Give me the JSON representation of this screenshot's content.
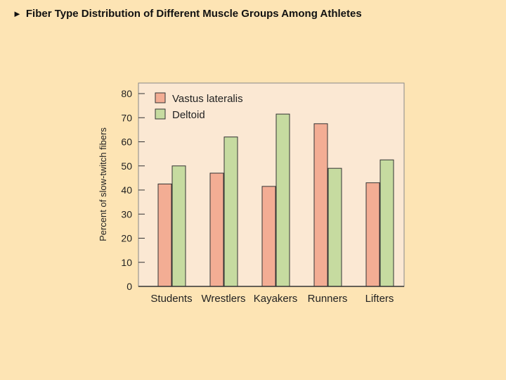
{
  "slide": {
    "bullet_icon": "play-triangle-icon",
    "title": "Fiber Type Distribution of Different Muscle Groups Among Athletes"
  },
  "colors": {
    "background": "#fde4b4",
    "plot_bg": "#fbe8d3",
    "series_1": "#f3ad94",
    "series_2": "#c6dba0",
    "axis": "#333333"
  },
  "chart_data": {
    "type": "bar",
    "title": "",
    "xlabel": "",
    "ylabel": "Percent of slow-twitch fibers",
    "ylim": [
      0,
      80
    ],
    "yticks": [
      0,
      10,
      20,
      30,
      40,
      50,
      60,
      70,
      80
    ],
    "grid": false,
    "legend_position": "top-left",
    "categories": [
      "Students",
      "Wrestlers",
      "Kayakers",
      "Runners",
      "Lifters"
    ],
    "series": [
      {
        "name": "Vastus lateralis",
        "values": [
          42.5,
          47,
          41.5,
          67.5,
          43
        ]
      },
      {
        "name": "Deltoid",
        "values": [
          50,
          62,
          71.5,
          49,
          52.5
        ]
      }
    ]
  }
}
